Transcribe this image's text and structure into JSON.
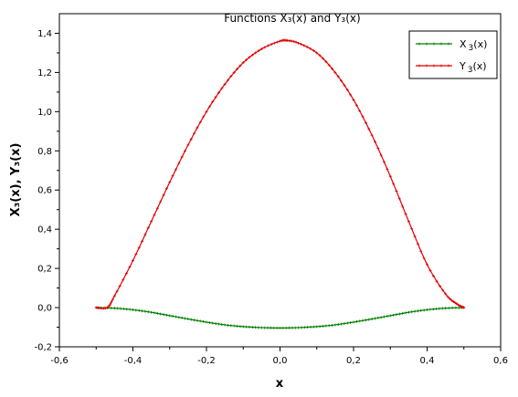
{
  "chart_data": {
    "type": "line",
    "title": "Functions X₃(x) and Y₃(x)",
    "xlabel": "x",
    "ylabel": "X₃(x), Y₃(x)",
    "xlim": [
      -0.6,
      0.6
    ],
    "ylim": [
      -0.2,
      1.5
    ],
    "xticks": [
      "-0,6",
      "-0,4",
      "-0,2",
      "0,0",
      "0,2",
      "0,4",
      "0,6"
    ],
    "xtick_values": [
      -0.6,
      -0.4,
      -0.2,
      0.0,
      0.2,
      0.4,
      0.6
    ],
    "yticks": [
      "-0,2",
      "0,0",
      "0,2",
      "0,4",
      "0,6",
      "0,8",
      "1,0",
      "1,2",
      "1,4"
    ],
    "ytick_values": [
      -0.2,
      0.0,
      0.2,
      0.4,
      0.6,
      0.8,
      1.0,
      1.2,
      1.4
    ],
    "grid": false,
    "legend_position": "top-right",
    "series": [
      {
        "name": "X₃(x)",
        "legend_main": "X",
        "legend_sub": "3",
        "legend_tail": "(x)",
        "color": "#008000",
        "x": [
          -0.5,
          -0.45,
          -0.4,
          -0.35,
          -0.3,
          -0.25,
          -0.2,
          -0.15,
          -0.1,
          -0.05,
          0.0,
          0.05,
          0.1,
          0.15,
          0.2,
          0.25,
          0.3,
          0.35,
          0.4,
          0.45,
          0.5
        ],
        "y": [
          0.0,
          -0.003,
          -0.011,
          -0.024,
          -0.041,
          -0.058,
          -0.074,
          -0.088,
          -0.097,
          -0.102,
          -0.104,
          -0.102,
          -0.097,
          -0.088,
          -0.074,
          -0.058,
          -0.041,
          -0.024,
          -0.011,
          -0.003,
          0.0
        ]
      },
      {
        "name": "Y₃(x)",
        "legend_main": "Y",
        "legend_sub": "3",
        "legend_tail": "(x)",
        "color": "#e00000",
        "x": [
          -0.5,
          -0.47,
          -0.45,
          -0.4,
          -0.35,
          -0.3,
          -0.25,
          -0.2,
          -0.15,
          -0.1,
          -0.05,
          0.0,
          0.02,
          0.05,
          0.1,
          0.15,
          0.2,
          0.25,
          0.3,
          0.35,
          0.4,
          0.45,
          0.48,
          0.5
        ],
        "y": [
          0.0,
          0.0,
          0.06,
          0.24,
          0.44,
          0.64,
          0.83,
          1.0,
          1.14,
          1.25,
          1.32,
          1.36,
          1.363,
          1.35,
          1.3,
          1.2,
          1.06,
          0.88,
          0.67,
          0.44,
          0.22,
          0.07,
          0.02,
          0.0
        ]
      }
    ]
  }
}
